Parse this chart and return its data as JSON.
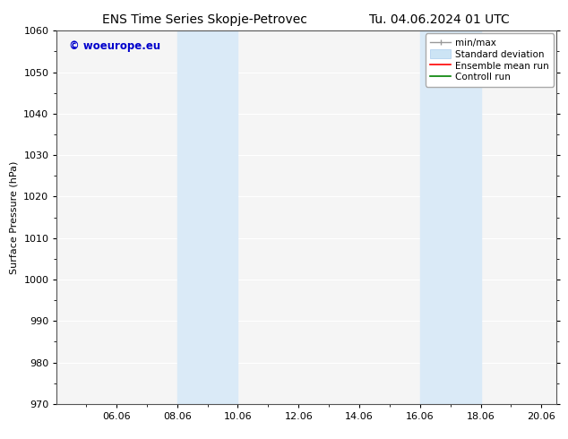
{
  "title_left": "ENS Time Series Skopje-Petrovec",
  "title_right": "Tu. 04.06.2024 01 UTC",
  "ylabel": "Surface Pressure (hPa)",
  "ylim": [
    970,
    1060
  ],
  "yticks": [
    970,
    980,
    990,
    1000,
    1010,
    1020,
    1030,
    1040,
    1050,
    1060
  ],
  "xlim_start": 4.04,
  "xlim_end": 20.5,
  "xtick_labels": [
    "06.06",
    "08.06",
    "10.06",
    "12.06",
    "14.06",
    "16.06",
    "18.06",
    "20.06"
  ],
  "xtick_positions": [
    6,
    8,
    10,
    12,
    14,
    16,
    18,
    20
  ],
  "xminor_positions": [
    5,
    7,
    9,
    11,
    13,
    15,
    17,
    19
  ],
  "shaded_bands": [
    {
      "x_start": 8.0,
      "x_end": 10.0
    },
    {
      "x_start": 16.0,
      "x_end": 18.0
    }
  ],
  "shaded_color": "#daeaf7",
  "watermark_text": "© woeurope.eu",
  "watermark_color": "#0000cc",
  "bg_color": "#ffffff",
  "plot_bg_color": "#f5f5f5",
  "spine_color": "#555555",
  "grid_color": "#ffffff",
  "title_fontsize": 10,
  "axis_fontsize": 8,
  "tick_fontsize": 8,
  "legend_fontsize": 7.5
}
